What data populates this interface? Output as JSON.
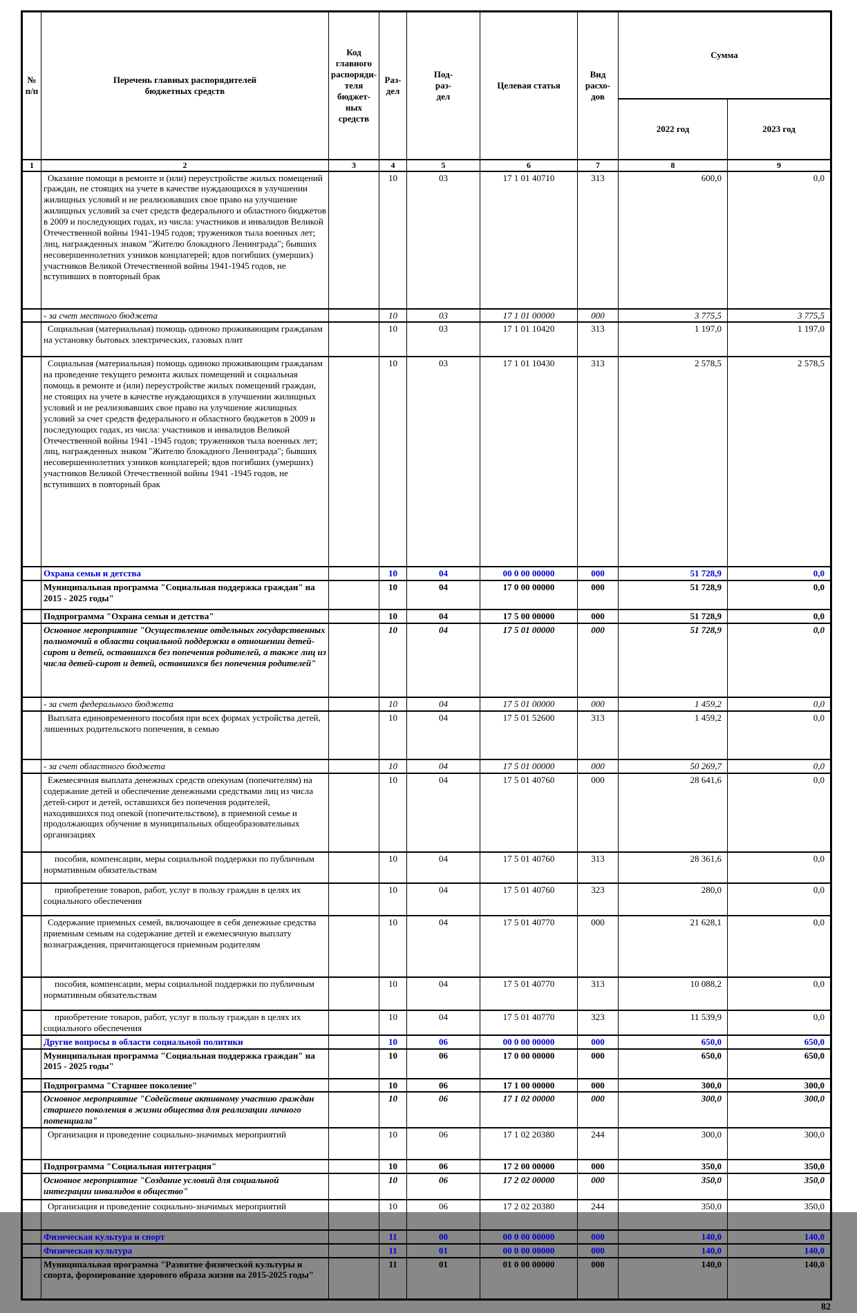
{
  "page": {
    "number": "82"
  },
  "colors": {
    "accent_blue": "#0000d4"
  },
  "table": {
    "header": {
      "col_num": "№\nп/п",
      "col_name": "Перечень главных распорядителей\nбюджетных средств",
      "col_code": "Код\nглавного\nраспоряди-\nтеля бюджет-\nных средств",
      "col_razdel": "Раз-\nдел",
      "col_podrazdel": "Под-\nраз-\nдел",
      "col_target": "Целевая статья",
      "col_vid": "Вид расхо-\nдов",
      "col_sum": "Сумма",
      "col_year_2022": "2022 год",
      "col_year_2023": "2023 год",
      "numbers": [
        "1",
        "2",
        "3",
        "4",
        "5",
        "6",
        "7",
        "8",
        "9"
      ]
    },
    "rows": [
      {
        "style": "normal",
        "text": "Оказание помощи в ремонте и (или) переустройстве жилых помещений граждан, не стоящих на учете в качестве нуждающихся в улучшении жилищных условий и не реализовавших свое право на улучшение жилищных условий за счет средств федерального и областного бюджетов в 2009 и последующих годах, из числа: участников и инвалидов Великой Отечественной войны 1941-1945 годов; тружеников тыла военных лет; лиц, награжденных знаком \"Жителю блокадного Ленинграда\"; бывших несовершеннолетних узников концлагерей; вдов погибших (умерших) участников Великой Отечественной войны 1941-1945 годов, не вступивших в повторный брак",
        "code": "",
        "razdel": "10",
        "podrazdel": "03",
        "target": "17 1 01 40710",
        "vid": "313",
        "sum2022": "600,0",
        "sum2023": "0,0"
      },
      {
        "style": "italic",
        "text": "- за счет местного бюджета",
        "code": "",
        "razdel": "10",
        "podrazdel": "03",
        "target": "17 1 01 00000",
        "vid": "000",
        "sum2022": "3 775,5",
        "sum2023": "3 775,5"
      },
      {
        "style": "normal",
        "text": "Социальная (материальная) помощь одиноко проживающим гражданам на установку бытовых электрических, газовых плит",
        "code": "",
        "razdel": "10",
        "podrazdel": "03",
        "target": "17 1 01 10420",
        "vid": "313",
        "sum2022": "1 197,0",
        "sum2023": "1 197,0"
      },
      {
        "style": "normal",
        "text": "Социальная (материальная) помощь одиноко проживающим гражданам на проведение текущего ремонта жилых помещений и социальная помощь в ремонте и (или) переустройстве жилых помещений граждан, не стоящих на учете в качестве нуждающихся в улучшении жилищных условий и не реализовавших свое право на улучшение жилищных условий за счет средств федерального и областного бюджетов в 2009 и последующих годах, из числа: участников и инвалидов Великой Отечественной войны 1941 -1945 годов; тружеников тыла военных лет; лиц, награжденных знаком \"Жителю блокадного Ленинграда\"; бывших несовершеннолетних узников концлагерей; вдов погибших (умерших) участников Великой Отечественной войны 1941 -1945 годов, не вступивших в повторный брак",
        "code": "",
        "razdel": "10",
        "podrazdel": "03",
        "target": "17 1 01 10430",
        "vid": "313",
        "sum2022": "2 578,5",
        "sum2023": "2 578,5"
      },
      {
        "style": "blue",
        "text": "Охрана семьи и детства",
        "code": "",
        "razdel": "10",
        "podrazdel": "04",
        "target": "00 0 00 00000",
        "vid": "000",
        "sum2022": "51 728,9",
        "sum2023": "0,0"
      },
      {
        "style": "bold",
        "text": "Муниципальная программа \"Социальная поддержка граждан\" на 2015 - 2025 годы\"",
        "code": "",
        "razdel": "10",
        "podrazdel": "04",
        "target": "17 0 00 00000",
        "vid": "000",
        "sum2022": "51 728,9",
        "sum2023": "0,0"
      },
      {
        "style": "bold",
        "text": "Подпрограмма \"Охрана семьи и детства\"",
        "code": "",
        "razdel": "10",
        "podrazdel": "04",
        "target": "17 5 00 00000",
        "vid": "000",
        "sum2022": "51 728,9",
        "sum2023": "0,0"
      },
      {
        "style": "bi",
        "text": "Основное мероприятие \"Осуществление отдельных государственных полномочий в области социальной поддержки в отношении детей-сирот и детей, оставшихся без попечения родителей, а также лиц из числа детей-сирот и детей, оставшихся без попечения родителей\"",
        "code": "",
        "razdel": "10",
        "podrazdel": "04",
        "target": "17 5 01 00000",
        "vid": "000",
        "sum2022": "51 728,9",
        "sum2023": "0,0"
      },
      {
        "style": "italic",
        "text": "- за счет федерального бюджета",
        "code": "",
        "razdel": "10",
        "podrazdel": "04",
        "target": "17 5 01 00000",
        "vid": "000",
        "sum2022": "1 459,2",
        "sum2023": "0,0"
      },
      {
        "style": "normal",
        "text": "Выплата единовременного пособия при всех формах устройства детей, лишенных родительского попечения, в семью",
        "code": "",
        "razdel": "10",
        "podrazdel": "04",
        "target": "17 5 01 52600",
        "vid": "313",
        "sum2022": "1 459,2",
        "sum2023": "0,0"
      },
      {
        "style": "italic",
        "text": "- за счет областного бюджета",
        "code": "",
        "razdel": "10",
        "podrazdel": "04",
        "target": "17 5 01 00000",
        "vid": "000",
        "sum2022": "50 269,7",
        "sum2023": "0,0"
      },
      {
        "style": "normal",
        "text": "Ежемесячная выплата денежных средств опекунам (попечителям) на содержание детей и обеспечение денежными средствами лиц из числа детей-сирот и детей, оставшихся без попечения родителей, находившихся под опекой (попечительством), в приемной семье и продолжающих обучение в муниципальных общеобразовательных организациях",
        "code": "",
        "razdel": "10",
        "podrazdel": "04",
        "target": "17 5 01 40760",
        "vid": "000",
        "sum2022": "28 641,6",
        "sum2023": "0,0"
      },
      {
        "style": "sub",
        "text": "пособия, компенсации, меры социальной поддержки по публичным нормативным обязательствам",
        "code": "",
        "razdel": "10",
        "podrazdel": "04",
        "target": "17 5 01 40760",
        "vid": "313",
        "sum2022": "28 361,6",
        "sum2023": "0,0"
      },
      {
        "style": "sub",
        "text": "приобретение товаров, работ, услуг в пользу граждан в целях их социального обеспечения",
        "code": "",
        "razdel": "10",
        "podrazdel": "04",
        "target": "17 5 01 40760",
        "vid": "323",
        "sum2022": "280,0",
        "sum2023": "0,0"
      },
      {
        "style": "normal",
        "text": "Содержание приемных семей, включающее в себя денежные средства приемным семьям на содержание детей и ежемесячную выплату вознаграждения, причитающегося приемным родителям",
        "code": "",
        "razdel": "10",
        "podrazdel": "04",
        "target": "17 5 01 40770",
        "vid": "000",
        "sum2022": "21 628,1",
        "sum2023": "0,0"
      },
      {
        "style": "sub",
        "text": "пособия, компенсации, меры социальной поддержки по публичным нормативным обязательствам",
        "code": "",
        "razdel": "10",
        "podrazdel": "04",
        "target": "17 5 01 40770",
        "vid": "313",
        "sum2022": "10 088,2",
        "sum2023": "0,0"
      },
      {
        "style": "sub",
        "text": "приобретение товаров, работ, услуг в пользу граждан в целях их социального обеспечения",
        "code": "",
        "razdel": "10",
        "podrazdel": "04",
        "target": "17 5 01 40770",
        "vid": "323",
        "sum2022": "11 539,9",
        "sum2023": "0,0"
      },
      {
        "style": "blue",
        "text": "Другие вопросы в области социальной политики",
        "code": "",
        "razdel": "10",
        "podrazdel": "06",
        "target": "00 0 00 00000",
        "vid": "000",
        "sum2022": "650,0",
        "sum2023": "650,0"
      },
      {
        "style": "bold",
        "text": "Муниципальная программа \"Социальная поддержка граждан\" на 2015 - 2025 годы\"",
        "code": "",
        "razdel": "10",
        "podrazdel": "06",
        "target": "17 0 00 00000",
        "vid": "000",
        "sum2022": "650,0",
        "sum2023": "650,0"
      },
      {
        "style": "bold",
        "text": "Подпрограмма \"Старшее поколение\"",
        "code": "",
        "razdel": "10",
        "podrazdel": "06",
        "target": "17 1 00 00000",
        "vid": "000",
        "sum2022": "300,0",
        "sum2023": "300,0"
      },
      {
        "style": "bi",
        "text": "Основное мероприятие \"Содействие активному участию граждан старшего поколения в жизни общества для реализации личного потенциала\"",
        "code": "",
        "razdel": "10",
        "podrazdel": "06",
        "target": "17 1 02 00000",
        "vid": "000",
        "sum2022": "300,0",
        "sum2023": "300,0"
      },
      {
        "style": "normal",
        "text": "Организация и проведение социально-значимых мероприятий",
        "code": "",
        "razdel": "10",
        "podrazdel": "06",
        "target": "17 1 02 20380",
        "vid": "244",
        "sum2022": "300,0",
        "sum2023": "300,0"
      },
      {
        "style": "bold",
        "text": "Подпрограмма \"Социальная интеграция\"",
        "code": "",
        "razdel": "10",
        "podrazdel": "06",
        "target": "17 2 00 00000",
        "vid": "000",
        "sum2022": "350,0",
        "sum2023": "350,0"
      },
      {
        "style": "bi",
        "text": "Основное мероприятие \"Создание условий для социальной интеграции инвалидов в общество\"",
        "code": "",
        "razdel": "10",
        "podrazdel": "06",
        "target": "17 2 02 00000",
        "vid": "000",
        "sum2022": "350,0",
        "sum2023": "350,0"
      },
      {
        "style": "normal",
        "text": "Организация и проведение социально-значимых мероприятий",
        "code": "",
        "razdel": "10",
        "podrazdel": "06",
        "target": "17 2 02 20380",
        "vid": "244",
        "sum2022": "350,0",
        "sum2023": "350,0"
      },
      {
        "style": "blue",
        "text": "Физическая культура и спорт",
        "code": "",
        "razdel": "11",
        "podrazdel": "00",
        "target": "00 0 00 00000",
        "vid": "000",
        "sum2022": "140,0",
        "sum2023": "140,0"
      },
      {
        "style": "blue",
        "text": "Физическая культура",
        "code": "",
        "razdel": "11",
        "podrazdel": "01",
        "target": "00 0 00 00000",
        "vid": "000",
        "sum2022": "140,0",
        "sum2023": "140,0"
      },
      {
        "style": "bold",
        "text": "Муниципальная программа \"Развитие физической культуры и спорта, формирование здорового образа жизни на 2015-2025 годы\"",
        "code": "",
        "razdel": "11",
        "podrazdel": "01",
        "target": "01 0 00 00000",
        "vid": "000",
        "sum2022": "140,0",
        "sum2023": "140,0"
      }
    ]
  }
}
